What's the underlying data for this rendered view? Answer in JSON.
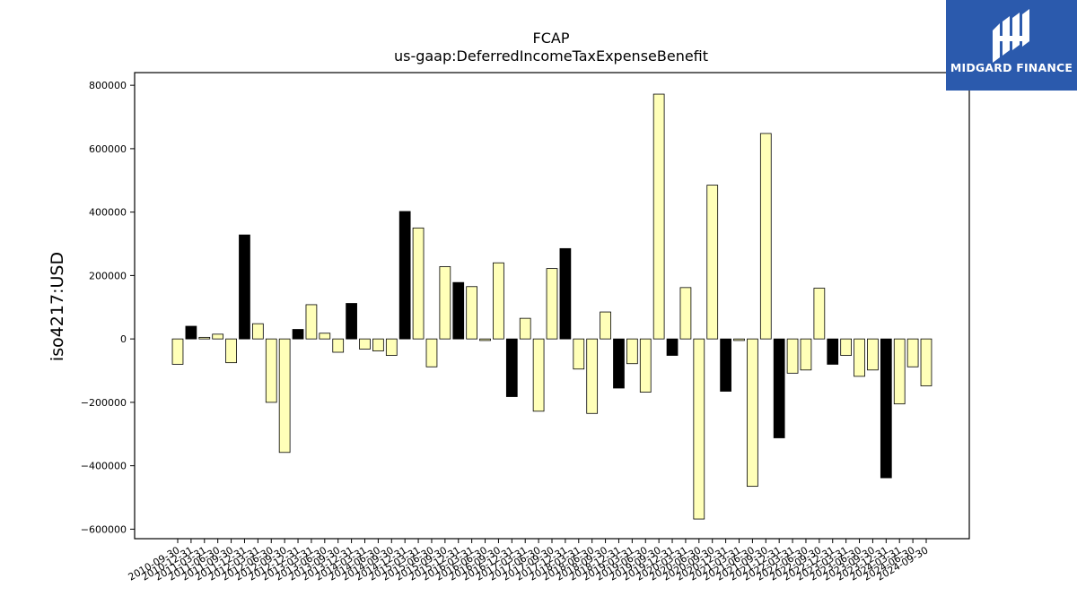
{
  "logo": {
    "text": "MIDGARD FINANCE",
    "bg_color": "#2b5aad",
    "fg_color": "#ffffff"
  },
  "chart_data": {
    "type": "bar",
    "title": "FCAP",
    "subtitle": "us-gaap:DeferredIncomeTaxExpenseBenefit",
    "xlabel": "",
    "ylabel": "iso4217:USD",
    "ylim": [
      -630000,
      840000
    ],
    "yticks": [
      -600000,
      -400000,
      -200000,
      0,
      200000,
      400000,
      600000,
      800000
    ],
    "ytick_labels": [
      "−600000",
      "−400000",
      "−200000",
      "0",
      "200000",
      "400000",
      "600000",
      "800000"
    ],
    "grid": false,
    "legend": "none",
    "colors": {
      "quarter": "#ffffb8",
      "annual": "#000000",
      "edge": "#000000"
    },
    "categories": [
      "2010-09-30",
      "2010-12-31",
      "2011-03-31",
      "2011-06-30",
      "2011-09-30",
      "2011-12-31",
      "2012-03-31",
      "2012-06-30",
      "2012-09-30",
      "2012-12-31",
      "2013-03-31",
      "2013-06-30",
      "2013-09-30",
      "2013-12-31",
      "2014-03-31",
      "2014-06-30",
      "2014-09-30",
      "2014-12-31",
      "2015-03-31",
      "2015-06-30",
      "2015-09-30",
      "2015-12-31",
      "2016-03-31",
      "2016-06-30",
      "2016-09-30",
      "2016-12-31",
      "2017-03-31",
      "2017-06-30",
      "2017-09-30",
      "2017-12-31",
      "2018-03-31",
      "2018-06-30",
      "2018-09-30",
      "2018-12-31",
      "2019-03-31",
      "2019-06-30",
      "2019-09-30",
      "2019-12-31",
      "2020-03-31",
      "2020-06-30",
      "2020-09-30",
      "2020-12-31",
      "2021-03-31",
      "2021-06-30",
      "2021-09-30",
      "2021-12-31",
      "2022-03-31",
      "2022-06-30",
      "2022-09-30",
      "2022-12-31",
      "2023-03-31",
      "2023-06-30",
      "2023-09-30",
      "2023-12-31",
      "2024-03-31",
      "2024-06-30",
      "2024-09-30"
    ],
    "values": [
      -80000,
      40000,
      5000,
      15000,
      -75000,
      328000,
      48000,
      -200000,
      -358000,
      30000,
      108000,
      18000,
      -42000,
      112000,
      -32000,
      -38000,
      -52000,
      402000,
      350000,
      -88000,
      228000,
      178000,
      165000,
      -5000,
      240000,
      -182000,
      65000,
      -228000,
      222000,
      285000,
      -95000,
      -235000,
      85000,
      -155000,
      -78000,
      -168000,
      772000,
      -52000,
      162000,
      -568000,
      485000,
      -165000,
      -5000,
      -465000,
      648000,
      -312000,
      -108000,
      -98000,
      160000,
      -80000,
      -52000,
      -118000,
      -98000,
      -438000,
      -205000,
      -88000,
      -148000
    ],
    "annual_flags": [
      false,
      true,
      false,
      false,
      false,
      true,
      false,
      false,
      false,
      true,
      false,
      false,
      false,
      true,
      false,
      false,
      false,
      true,
      false,
      false,
      false,
      true,
      false,
      false,
      false,
      true,
      false,
      false,
      false,
      true,
      false,
      false,
      false,
      true,
      false,
      false,
      false,
      true,
      false,
      false,
      false,
      true,
      false,
      false,
      false,
      true,
      false,
      false,
      false,
      true,
      false,
      false,
      false,
      true,
      false,
      false,
      false
    ]
  }
}
